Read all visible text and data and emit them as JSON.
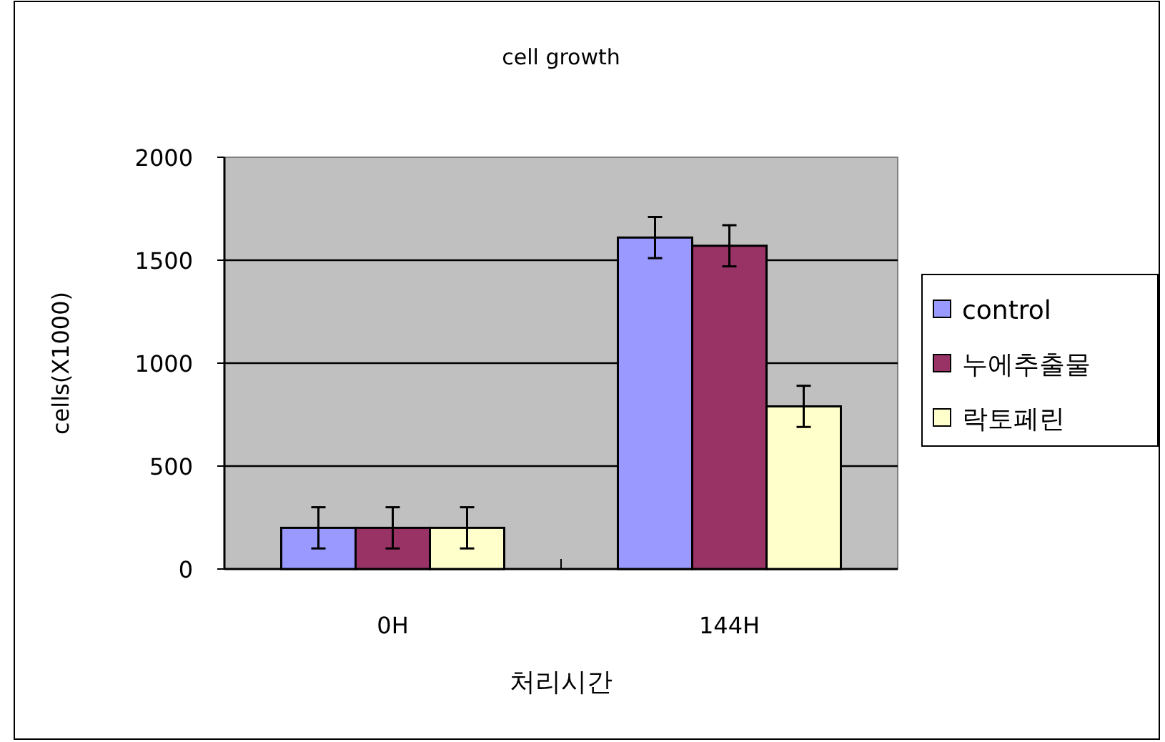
{
  "chart_data": {
    "type": "bar",
    "title": "cell growth",
    "xlabel": "처리시간",
    "ylabel": "cells(X1000)",
    "categories": [
      "0H",
      "144H"
    ],
    "series": [
      {
        "name": "control",
        "color": "#9999ff",
        "values": [
          200,
          1610
        ],
        "errors": [
          100,
          100
        ]
      },
      {
        "name": "누에추출물",
        "color": "#993366",
        "values": [
          200,
          1570
        ],
        "errors": [
          100,
          100
        ]
      },
      {
        "name": "락토페린",
        "color": "#ffffcc",
        "values": [
          200,
          790
        ],
        "errors": [
          100,
          100
        ]
      }
    ],
    "ylim": [
      0,
      2000
    ],
    "yticks": [
      0,
      500,
      1000,
      1500,
      2000
    ],
    "grid": "y",
    "legend": "right"
  }
}
